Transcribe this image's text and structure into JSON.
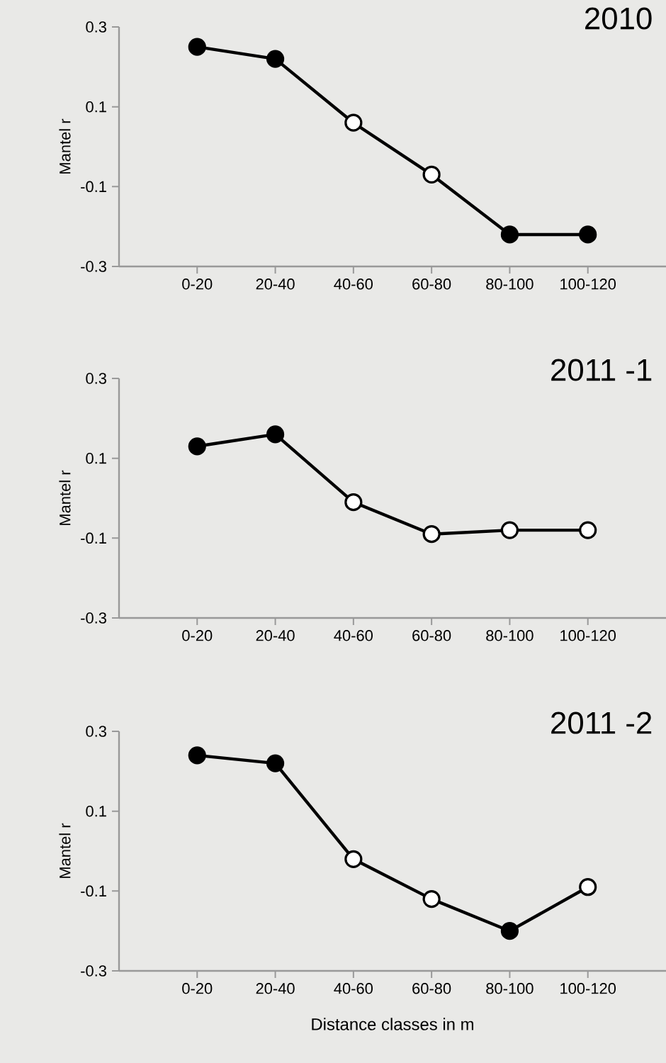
{
  "chart_data": [
    {
      "type": "line",
      "title": "2010",
      "ylabel": "Mantel r",
      "categories": [
        "0-20",
        "20-40",
        "40-60",
        "60-80",
        "80-100",
        "100-120"
      ],
      "ylim": [
        -0.3,
        0.3
      ],
      "yticks": [
        -0.3,
        -0.1,
        0.1,
        0.3
      ],
      "marker": "circle",
      "line_style": "solid",
      "series": [
        {
          "color": "#000000",
          "colors": [
            "#000000",
            "#000000",
            "#ffffff",
            "#ffffff",
            "#000000",
            "#000000"
          ],
          "values": [
            0.25,
            0.22,
            0.06,
            -0.07,
            -0.22,
            -0.22
          ]
        }
      ]
    },
    {
      "type": "line",
      "title": "2011 -1",
      "ylabel": "Mantel r",
      "categories": [
        "0-20",
        "20-40",
        "40-60",
        "60-80",
        "80-100",
        "100-120"
      ],
      "ylim": [
        -0.3,
        0.3
      ],
      "yticks": [
        -0.3,
        -0.1,
        0.1,
        0.3
      ],
      "marker": "circle",
      "line_style": "solid",
      "series": [
        {
          "color": "#000000",
          "colors": [
            "#000000",
            "#000000",
            "#ffffff",
            "#ffffff",
            "#ffffff",
            "#ffffff"
          ],
          "values": [
            0.13,
            0.16,
            -0.01,
            -0.09,
            -0.08,
            -0.08
          ]
        }
      ]
    },
    {
      "type": "line",
      "title": "2011 -2",
      "ylabel": "Mantel r",
      "xlabel": "Distance classes in m",
      "categories": [
        "0-20",
        "20-40",
        "40-60",
        "60-80",
        "80-100",
        "100-120"
      ],
      "ylim": [
        -0.3,
        0.3
      ],
      "yticks": [
        -0.3,
        -0.1,
        0.1,
        0.3
      ],
      "marker": "circle",
      "line_style": "solid",
      "series": [
        {
          "color": "#000000",
          "colors": [
            "#000000",
            "#000000",
            "#ffffff",
            "#ffffff",
            "#000000",
            "#ffffff"
          ],
          "values": [
            0.24,
            0.22,
            -0.02,
            -0.12,
            -0.2,
            -0.09
          ]
        }
      ]
    }
  ]
}
